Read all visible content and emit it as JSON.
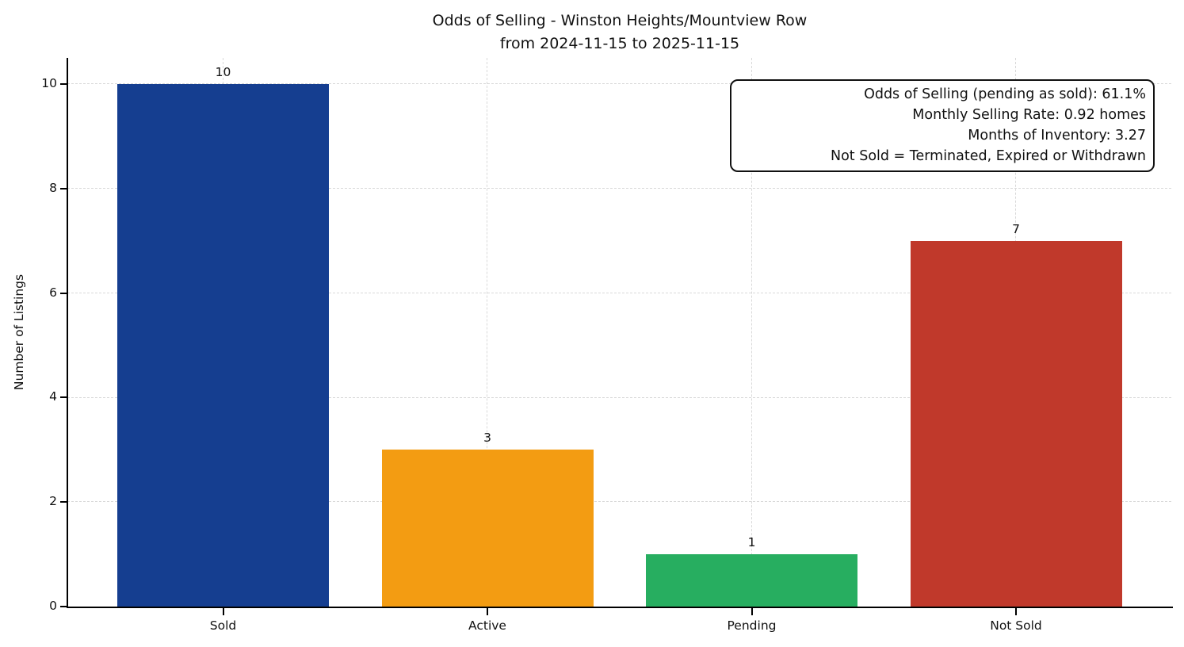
{
  "figure_title": {
    "line1": "Odds of Selling - Winston Heights/Mountview Row",
    "line2": "from 2024-11-15 to 2025-11-15"
  },
  "chart_data": {
    "type": "bar",
    "title": "Odds of Selling - Winston Heights/Mountview Row\nfrom 2024-11-15 to 2025-11-15",
    "categories": [
      "Sold",
      "Active",
      "Pending",
      "Not Sold"
    ],
    "values": [
      10,
      3,
      1,
      7
    ],
    "bar_colors": [
      "#153e90",
      "#f39c12",
      "#27ae60",
      "#c0392b"
    ],
    "xlabel": "",
    "ylabel": "Number of Listings",
    "ylim": [
      0,
      10.5
    ],
    "yticks": [
      0,
      2,
      4,
      6,
      8,
      10
    ],
    "grid": {
      "horizontal": true,
      "vertical": true,
      "style": "dashed",
      "color": "#d9d9d9"
    },
    "legend": "none",
    "annotation": {
      "position": "top-right",
      "align": "right",
      "lines": [
        "Odds of Selling (pending as sold): 61.1%",
        "Monthly Selling Rate: 0.92 homes",
        "Months of Inventory: 3.27",
        "Not Sold = Terminated, Expired or Withdrawn"
      ]
    }
  }
}
